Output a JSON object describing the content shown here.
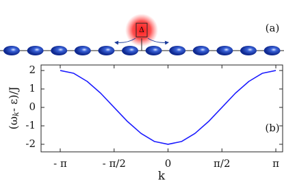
{
  "chart_data": {
    "type": "line",
    "panel_a_label": "(a)",
    "panel_b_label": "(b)",
    "atom_label": "Δ",
    "xlabel": "k",
    "ylabel_parts": [
      "(ω",
      "k",
      "- ε)/J"
    ],
    "x": [
      -3.1416,
      -2.7489,
      -2.3562,
      -1.9635,
      -1.5708,
      -1.1781,
      -0.7854,
      -0.3927,
      0,
      0.3927,
      0.7854,
      1.1781,
      1.5708,
      1.9635,
      2.3562,
      2.7489,
      3.1416
    ],
    "values": [
      2,
      1.85,
      1.41,
      0.77,
      0,
      -0.77,
      -1.41,
      -1.85,
      -2,
      -1.85,
      -1.41,
      -0.77,
      0,
      0.77,
      1.41,
      1.85,
      2
    ],
    "color": "#1a1aff",
    "xlim": [
      -3.7,
      3.34
    ],
    "ylim": [
      -2.41,
      2.3
    ],
    "xticks": [
      {
        "value": -3.1416,
        "label": "- π"
      },
      {
        "value": -1.5708,
        "label": "- π/2"
      },
      0,
      {
        "value": 1.5708,
        "label": "π/2"
      },
      {
        "value": 3.1416,
        "label": "π"
      }
    ],
    "yticks": [
      -2,
      -1,
      0,
      1,
      2
    ]
  }
}
